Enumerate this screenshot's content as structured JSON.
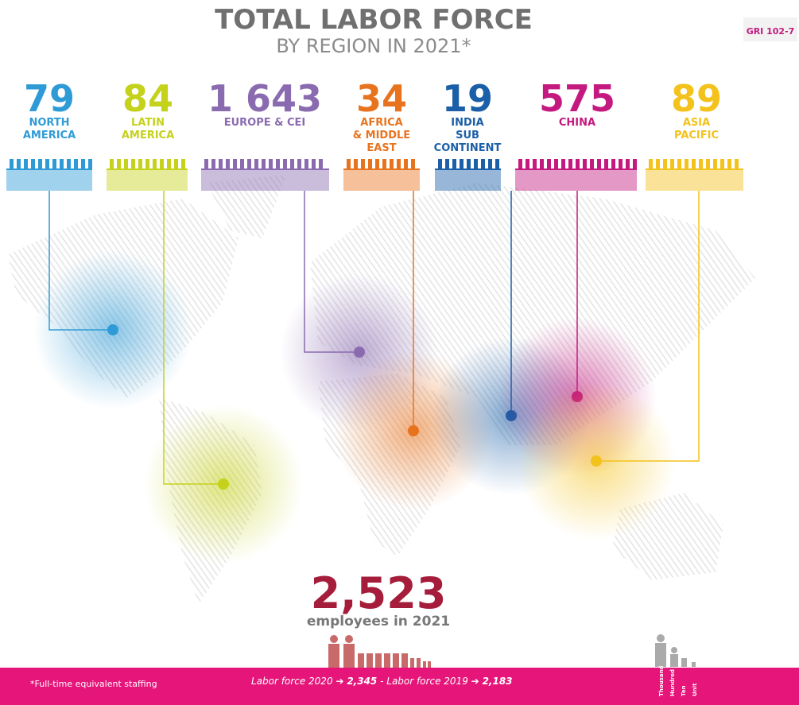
{
  "header": {
    "title": "TOTAL LABOR FORCE",
    "subtitle": "BY REGION IN 2021*",
    "tag": "GRI 102-7"
  },
  "regions": [
    {
      "value": "79",
      "label": [
        "NORTH",
        "AMERICA"
      ],
      "color": "#2f9bd6"
    },
    {
      "value": "84",
      "label": [
        "LATIN",
        "AMERICA"
      ],
      "color": "#c5d21b"
    },
    {
      "value": "1 643",
      "label": [
        "EUROPE & CEI"
      ],
      "color": "#8a6bb0"
    },
    {
      "value": "34",
      "label": [
        "AFRICA",
        "& MIDDLE",
        "EAST"
      ],
      "color": "#e8731e"
    },
    {
      "value": "19",
      "label": [
        "INDIA",
        "SUB",
        "CONTINENT"
      ],
      "color": "#1b5fa8"
    },
    {
      "value": "575",
      "label": [
        "CHINA"
      ],
      "color": "#c41a7f"
    },
    {
      "value": "89",
      "label": [
        "ASIA",
        "PACIFIC"
      ],
      "color": "#f4c21c"
    }
  ],
  "total": {
    "value": "2,523",
    "label": "employees in 2021"
  },
  "footer": {
    "note": "*Full-time equivalent staffing",
    "label_2020": "Labor force 2020",
    "value_2020": "2,345",
    "label_2019": "- Labor force 2019",
    "value_2019": "2,183"
  },
  "legend": [
    "Thousand",
    "Hundred",
    "Ten",
    "Unit"
  ]
}
